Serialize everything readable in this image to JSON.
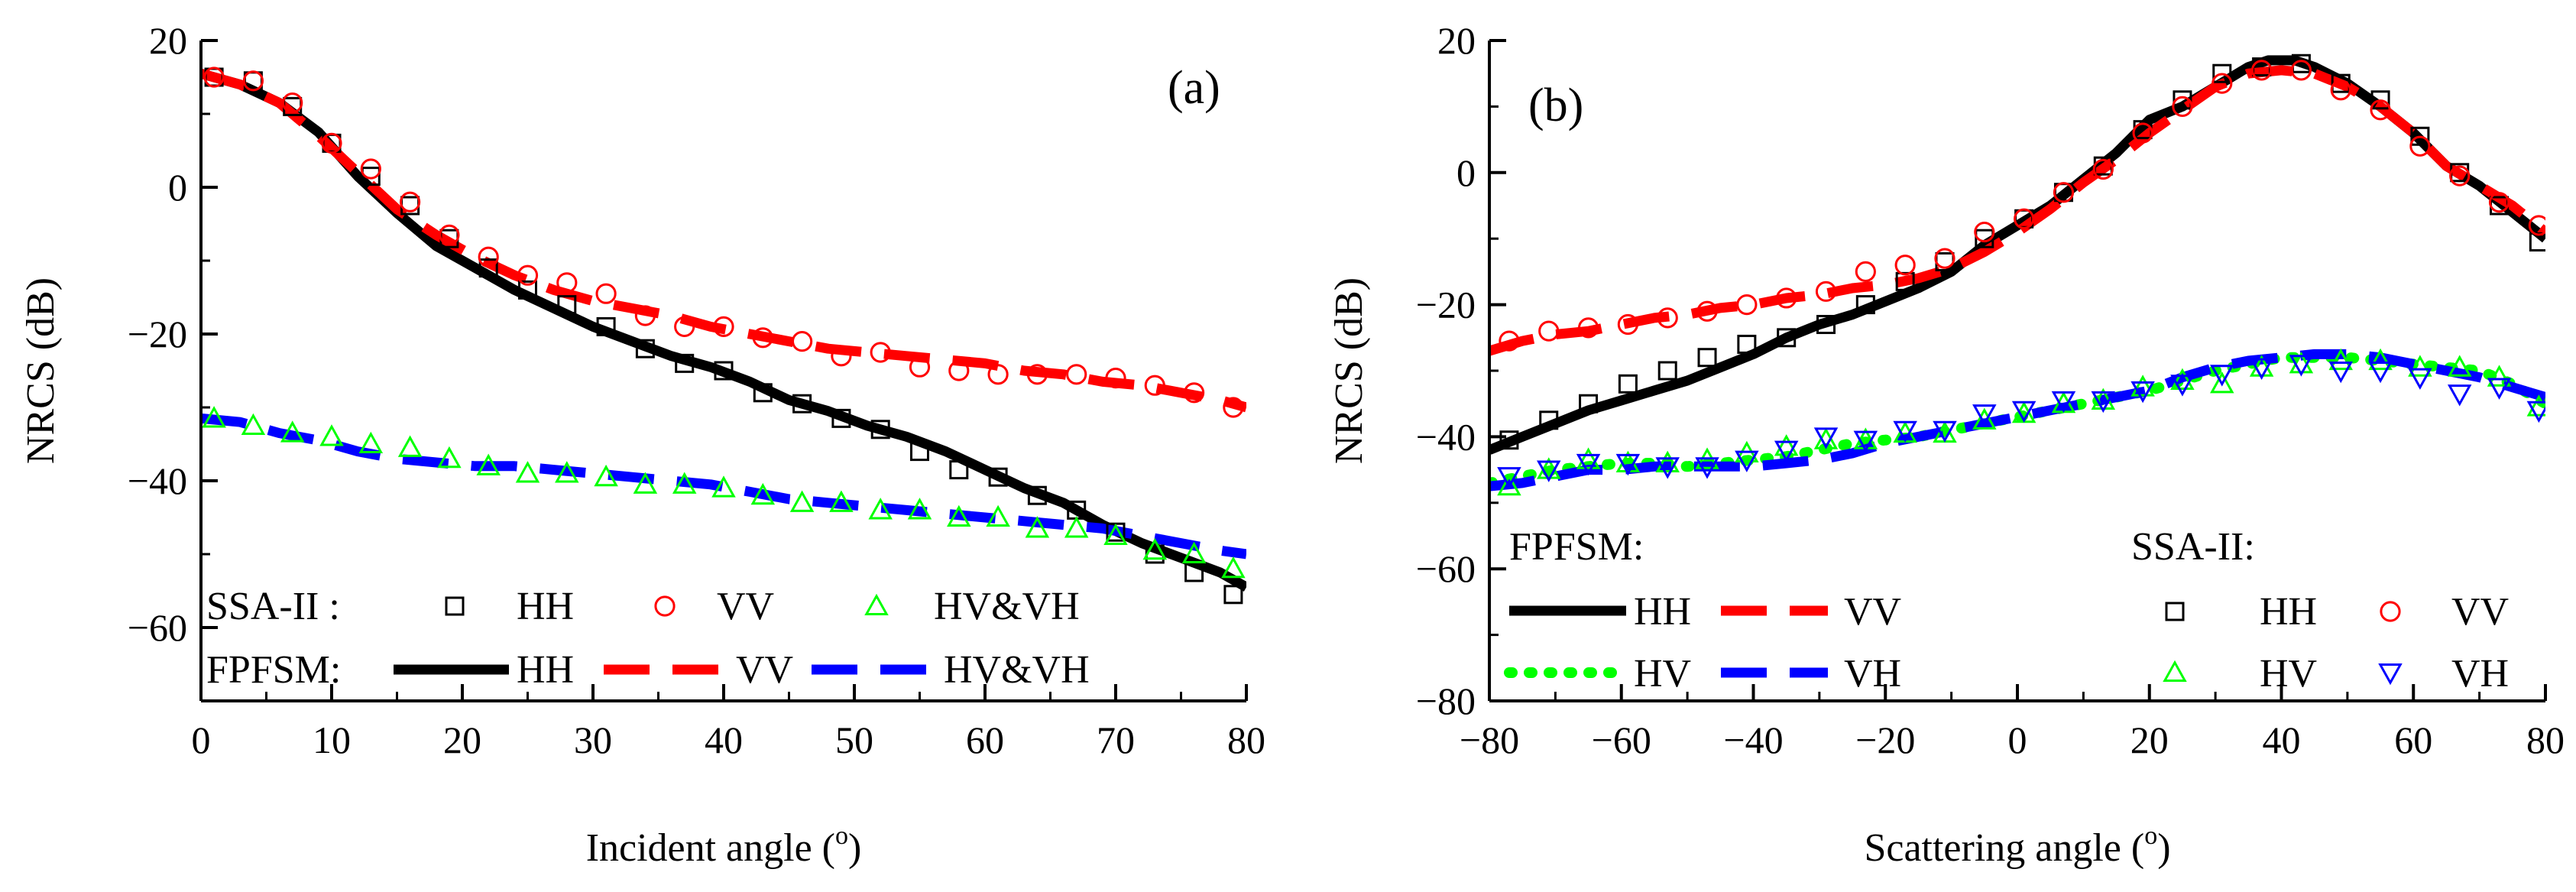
{
  "chart_data": [
    {
      "id": "a",
      "type": "line",
      "panel_label": "(a)",
      "xlabel": "Incident angle (",
      "xlabel_sup": "o",
      "xlabel_tail": ")",
      "ylabel": "NRCS (dB)",
      "xlim": [
        0,
        80
      ],
      "ylim": [
        -70,
        20
      ],
      "xticks": [
        0,
        10,
        20,
        30,
        40,
        50,
        60,
        70,
        80
      ],
      "yticks": [
        20,
        0,
        -20,
        -40,
        -60
      ],
      "legend": {
        "row1_label": "SSA-II :",
        "row2_label": "FPFSM:",
        "row1": [
          "HH",
          "VV",
          "HV&VH"
        ],
        "row2": [
          "HH",
          "VV",
          "HV&VH"
        ]
      },
      "series": [
        {
          "name": "FPFSM HH",
          "kind": "line",
          "color": "#000000",
          "style": "solid",
          "x": [
            0,
            3,
            6,
            9,
            12,
            15,
            18,
            21,
            24,
            27,
            30,
            33,
            36,
            39,
            42,
            45,
            48,
            51,
            54,
            57,
            60,
            63,
            66,
            69,
            72,
            75,
            78,
            80
          ],
          "y": [
            15.5,
            14,
            11.5,
            7.5,
            1.5,
            -3.5,
            -8,
            -11,
            -14,
            -16.5,
            -19,
            -21,
            -23,
            -24.5,
            -26.5,
            -29,
            -30.5,
            -32.5,
            -34,
            -36,
            -38.5,
            -41,
            -43,
            -46,
            -48.5,
            -50.5,
            -52.5,
            -54.5
          ]
        },
        {
          "name": "FPFSM VV",
          "kind": "line",
          "color": "#ff0000",
          "style": "dash",
          "x": [
            0,
            3,
            6,
            9,
            12,
            15,
            18,
            21,
            24,
            27,
            30,
            33,
            36,
            39,
            42,
            45,
            48,
            51,
            54,
            57,
            60,
            63,
            66,
            69,
            72,
            75,
            78,
            80
          ],
          "y": [
            15.5,
            14,
            11.5,
            7,
            2,
            -3,
            -6.5,
            -9.5,
            -12,
            -14,
            -15.5,
            -16.5,
            -17.5,
            -19,
            -20,
            -21,
            -22,
            -22.5,
            -23,
            -23.5,
            -24,
            -25,
            -25.5,
            -26.5,
            -27,
            -28,
            -29,
            -30
          ]
        },
        {
          "name": "FPFSM HV&VH",
          "kind": "line",
          "color": "#0000ff",
          "style": "dash",
          "x": [
            0,
            3,
            6,
            9,
            12,
            15,
            18,
            21,
            24,
            27,
            30,
            33,
            36,
            39,
            42,
            45,
            48,
            51,
            54,
            57,
            60,
            63,
            66,
            69,
            72,
            75,
            78,
            80
          ],
          "y": [
            -31.5,
            -32,
            -33.5,
            -34.5,
            -36,
            -37,
            -37.5,
            -38,
            -38,
            -38.5,
            -39,
            -39.5,
            -40,
            -40.5,
            -41.5,
            -42.5,
            -43,
            -43.5,
            -44,
            -44.5,
            -45,
            -45.5,
            -46,
            -46.5,
            -47.5,
            -48.5,
            -49.5,
            -50
          ]
        },
        {
          "name": "SSA-II HH",
          "kind": "marker",
          "marker": "square",
          "color": "#000000",
          "x": [
            1,
            4,
            7,
            10,
            13,
            16,
            19,
            22,
            25,
            28,
            31,
            34,
            37,
            40,
            43,
            46,
            49,
            52,
            55,
            58,
            61,
            64,
            67,
            70,
            73,
            76,
            79
          ],
          "y": [
            15,
            14.5,
            11,
            6,
            1.5,
            -2.5,
            -7,
            -11,
            -14,
            -16,
            -19,
            -22,
            -24,
            -25,
            -28,
            -29.5,
            -31.5,
            -33,
            -36,
            -38.5,
            -39.5,
            -42,
            -44,
            -47,
            -50,
            -52.5,
            -55.5
          ]
        },
        {
          "name": "SSA-II VV",
          "kind": "marker",
          "marker": "circle",
          "color": "#ff0000",
          "x": [
            1,
            4,
            7,
            10,
            13,
            16,
            19,
            22,
            25,
            28,
            31,
            34,
            37,
            40,
            43,
            46,
            49,
            52,
            55,
            58,
            61,
            64,
            67,
            70,
            73,
            76,
            79
          ],
          "y": [
            15,
            14.5,
            11.5,
            6,
            2.5,
            -2,
            -6.5,
            -9.5,
            -12,
            -13,
            -14.5,
            -17.5,
            -19,
            -19,
            -20.5,
            -21,
            -23,
            -22.5,
            -24.5,
            -25,
            -25.5,
            -25.5,
            -25.5,
            -26,
            -27,
            -28,
            -30
          ]
        },
        {
          "name": "SSA-II HV&VH",
          "kind": "marker",
          "marker": "triangle",
          "color": "#00ff00",
          "x": [
            1,
            4,
            7,
            10,
            13,
            16,
            19,
            22,
            25,
            28,
            31,
            34,
            37,
            40,
            43,
            46,
            49,
            52,
            55,
            58,
            61,
            64,
            67,
            70,
            73,
            76,
            79
          ],
          "y": [
            -31.5,
            -32.5,
            -33.5,
            -34,
            -35,
            -35.5,
            -37,
            -38,
            -39,
            -39,
            -39.5,
            -40.5,
            -40.5,
            -41,
            -42,
            -43,
            -43,
            -44,
            -44,
            -45,
            -45,
            -46.5,
            -46.5,
            -47.5,
            -49.5,
            -50,
            -52
          ]
        }
      ]
    },
    {
      "id": "b",
      "type": "line",
      "panel_label": "(b)",
      "xlabel": "Scattering angle (",
      "xlabel_sup": "o",
      "xlabel_tail": ")",
      "ylabel": "NRCS (dB)",
      "xlim": [
        -80,
        80
      ],
      "ylim": [
        -80,
        20
      ],
      "xticks": [
        -80,
        -60,
        -40,
        -20,
        0,
        20,
        40,
        60,
        80
      ],
      "yticks": [
        20,
        0,
        -20,
        -40,
        -60,
        -80
      ],
      "legend": {
        "left_title": "FPFSM:",
        "left_row1": [
          "HH",
          "VV"
        ],
        "left_row2": [
          "HV",
          "VH"
        ],
        "right_title": "SSA-II:",
        "right_row1": [
          "HH",
          "VV"
        ],
        "right_row2": [
          "HV",
          "VH"
        ]
      },
      "series": [
        {
          "name": "FPFSM HH",
          "kind": "line",
          "color": "#000000",
          "style": "solid",
          "x": [
            -80,
            -75,
            -70,
            -65,
            -60,
            -55,
            -50,
            -45,
            -40,
            -35,
            -30,
            -25,
            -20,
            -15,
            -10,
            -5,
            0,
            5,
            10,
            15,
            20,
            25,
            30,
            35,
            38,
            42,
            45,
            50,
            55,
            60,
            65,
            70,
            75,
            80
          ],
          "y": [
            -42,
            -40,
            -38,
            -36,
            -34.5,
            -33,
            -31.5,
            -29.5,
            -27.5,
            -25,
            -23,
            -21.5,
            -19.5,
            -17.5,
            -15,
            -11,
            -8,
            -5,
            -1,
            3,
            8,
            10,
            13,
            16,
            17,
            17,
            16,
            13.5,
            10,
            6,
            1,
            -2,
            -6,
            -10
          ]
        },
        {
          "name": "FPFSM VV",
          "kind": "line",
          "color": "#ff0000",
          "style": "dash",
          "x": [
            -80,
            -75,
            -70,
            -65,
            -60,
            -55,
            -50,
            -45,
            -40,
            -35,
            -30,
            -25,
            -20,
            -15,
            -10,
            -5,
            0,
            5,
            10,
            15,
            20,
            25,
            30,
            35,
            40,
            45,
            50,
            55,
            60,
            65,
            70,
            75,
            80
          ],
          "y": [
            -27,
            -25.5,
            -24.5,
            -24,
            -23,
            -22,
            -21.5,
            -20.5,
            -20,
            -19,
            -18.5,
            -17.5,
            -17,
            -16,
            -14.5,
            -12,
            -9,
            -5.5,
            -1.5,
            2,
            6,
            9.5,
            13,
            15,
            15.5,
            15,
            13,
            10,
            6,
            1,
            -2,
            -5,
            -9
          ]
        },
        {
          "name": "FPFSM HV",
          "kind": "line",
          "color": "#00ff00",
          "style": "dot",
          "x": [
            -80,
            -75,
            -70,
            -65,
            -60,
            -55,
            -50,
            -45,
            -40,
            -35,
            -30,
            -25,
            -20,
            -15,
            -10,
            -5,
            0,
            5,
            10,
            15,
            20,
            25,
            30,
            35,
            40,
            45,
            50,
            55,
            60,
            65,
            70,
            75,
            80
          ],
          "y": [
            -47,
            -46,
            -45,
            -44.5,
            -44,
            -44,
            -44.5,
            -44,
            -43.5,
            -43,
            -42,
            -41,
            -40.5,
            -40,
            -39,
            -38,
            -37,
            -36,
            -35,
            -34,
            -33,
            -31.5,
            -30,
            -29,
            -28,
            -28,
            -28,
            -28.5,
            -29,
            -29.5,
            -30,
            -32,
            -35
          ]
        },
        {
          "name": "FPFSM VH",
          "kind": "line",
          "color": "#0000ff",
          "style": "dash",
          "x": [
            -80,
            -75,
            -70,
            -65,
            -60,
            -55,
            -50,
            -45,
            -40,
            -35,
            -30,
            -25,
            -20,
            -15,
            -10,
            -5,
            0,
            5,
            10,
            15,
            20,
            25,
            30,
            35,
            40,
            45,
            50,
            55,
            60,
            65,
            70,
            75,
            80
          ],
          "y": [
            -47.5,
            -47,
            -46,
            -45,
            -45,
            -44.5,
            -44.5,
            -44.5,
            -44.5,
            -44,
            -43.5,
            -42.5,
            -41,
            -40,
            -39,
            -38,
            -37,
            -36,
            -35,
            -34,
            -33,
            -31,
            -29.5,
            -28.5,
            -28,
            -27.5,
            -27.5,
            -28,
            -29,
            -30,
            -31,
            -32.5,
            -34
          ]
        },
        {
          "name": "SSA-II HH",
          "kind": "marker",
          "marker": "square",
          "color": "#000000",
          "x": [
            -77,
            -71,
            -65,
            -59,
            -53,
            -47,
            -41,
            -35,
            -29,
            -23,
            -17,
            -11,
            -5,
            1,
            7,
            13,
            19,
            25,
            31,
            37,
            43,
            49,
            55,
            61,
            67,
            73,
            79
          ],
          "y": [
            -40.5,
            -37.5,
            -35,
            -32,
            -30,
            -28,
            -26,
            -25,
            -23,
            -20,
            -16.5,
            -13.5,
            -10,
            -7,
            -3,
            1,
            6.5,
            11,
            15,
            16,
            16.5,
            13.5,
            11,
            5.5,
            0,
            -5,
            -10.5
          ]
        },
        {
          "name": "SSA-II VV",
          "kind": "marker",
          "marker": "circle",
          "color": "#ff0000",
          "x": [
            -77,
            -71,
            -65,
            -59,
            -53,
            -47,
            -41,
            -35,
            -29,
            -23,
            -17,
            -11,
            -5,
            1,
            7,
            13,
            19,
            25,
            31,
            37,
            43,
            49,
            55,
            61,
            67,
            73,
            79
          ],
          "y": [
            -25.5,
            -24,
            -23.5,
            -23,
            -22,
            -21,
            -20,
            -19,
            -18,
            -15,
            -14,
            -13,
            -9,
            -7,
            -3,
            0.5,
            6,
            10,
            13.5,
            15.5,
            15.5,
            12.5,
            9.5,
            4,
            -0.5,
            -4.5,
            -8
          ]
        },
        {
          "name": "SSA-II HV",
          "kind": "marker",
          "marker": "triangle",
          "color": "#00ff00",
          "x": [
            -77,
            -71,
            -65,
            -59,
            -53,
            -47,
            -41,
            -35,
            -29,
            -23,
            -17,
            -11,
            -5,
            1,
            7,
            13,
            19,
            25,
            31,
            37,
            43,
            49,
            55,
            61,
            67,
            73,
            79
          ],
          "y": [
            -47.5,
            -45,
            -43.5,
            -44,
            -44,
            -43.5,
            -42.5,
            -41.5,
            -40.5,
            -40.5,
            -39.5,
            -39.5,
            -37.5,
            -36.5,
            -35,
            -34.5,
            -32.5,
            -31.5,
            -32,
            -29.5,
            -29,
            -28.5,
            -28.5,
            -29.5,
            -29.5,
            -31,
            -35.5
          ]
        },
        {
          "name": "SSA-II VH",
          "kind": "marker",
          "marker": "invtriangle",
          "color": "#0000ff",
          "x": [
            -77,
            -71,
            -65,
            -59,
            -53,
            -47,
            -41,
            -35,
            -29,
            -23,
            -17,
            -11,
            -5,
            1,
            7,
            13,
            19,
            25,
            31,
            37,
            43,
            49,
            55,
            61,
            67,
            73,
            79
          ],
          "y": [
            -46,
            -45,
            -44,
            -44,
            -44.5,
            -44.5,
            -43.5,
            -42,
            -40,
            -40.5,
            -39,
            -39,
            -36.5,
            -36,
            -34.5,
            -34.5,
            -33,
            -32,
            -30.5,
            -29.5,
            -29,
            -30,
            -30,
            -31,
            -33.5,
            -32.5,
            -36
          ]
        }
      ]
    }
  ]
}
